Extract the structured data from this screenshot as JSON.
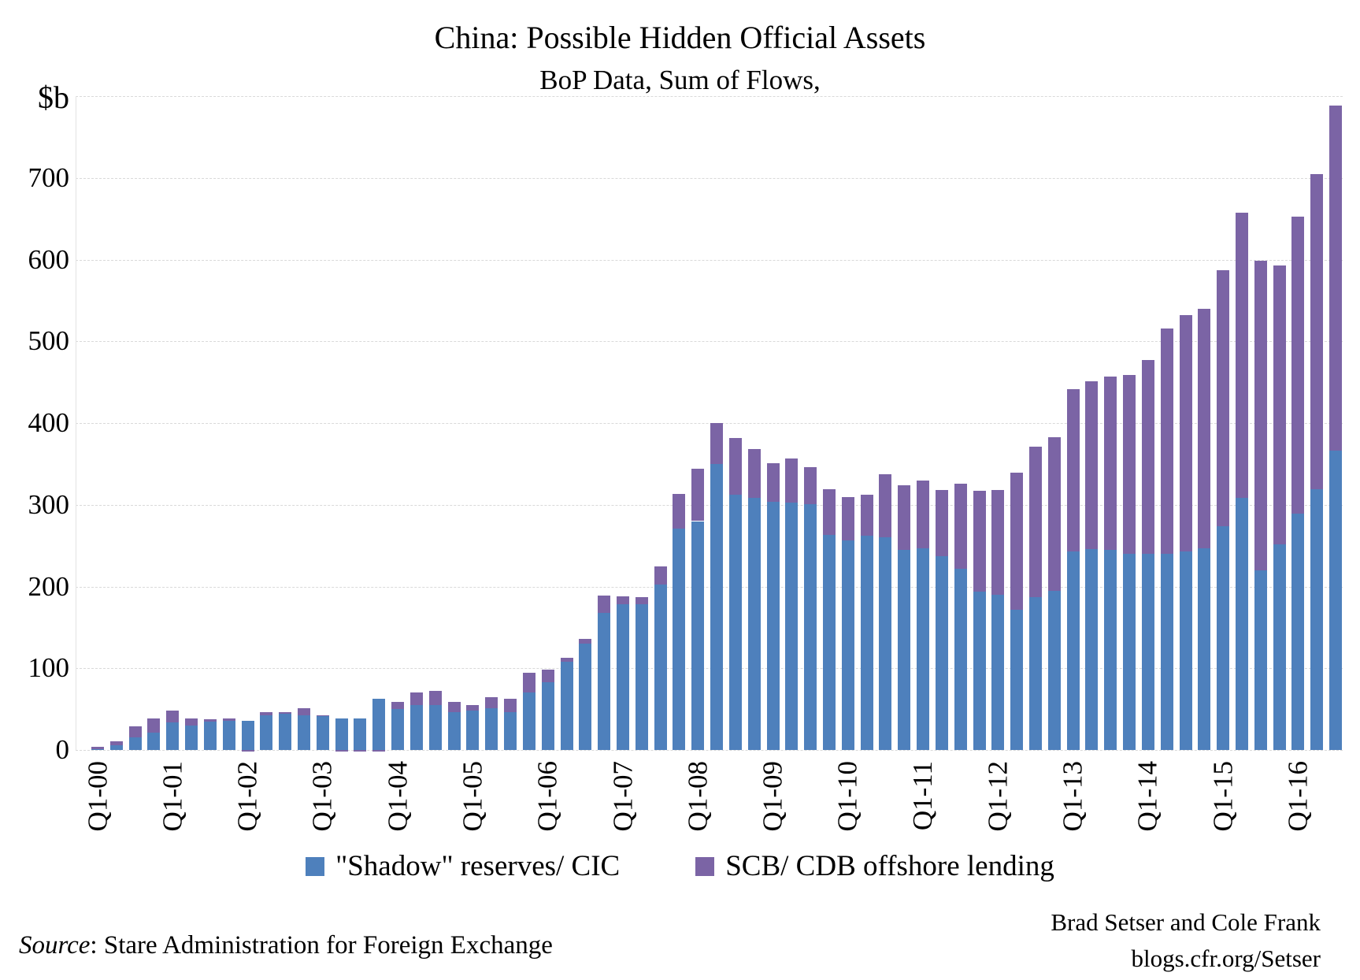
{
  "title": "China: Possible Hidden Official Assets",
  "subtitle": "BoP Data, Sum of Flows,",
  "unit_label": "$b",
  "source": {
    "prefix": "Source",
    "rest": ": Stare Administration for Foreign Exchange"
  },
  "credits": {
    "line1": "Brad Setser and Cole Frank",
    "line2": "blogs.cfr.org/Setser"
  },
  "colors": {
    "blue": "#4e80bc",
    "purple": "#7b64a5",
    "grid": "#d9d9d9",
    "text": "#000000"
  },
  "chart_data": {
    "type": "bar",
    "stacked": true,
    "title": "China: Possible Hidden Official Assets",
    "subtitle": "BoP Data, Sum of Flows,",
    "ylabel": "$b",
    "xlabel": "",
    "ylim": [
      0,
      800
    ],
    "grid": true,
    "legend_position": "bottom",
    "y_ticks": [
      0,
      100,
      200,
      300,
      400,
      500,
      600,
      700
    ],
    "x_tick_labels": [
      "Q1-00",
      "Q1-01",
      "Q1-02",
      "Q1-03",
      "Q1-04",
      "Q1-05",
      "Q1-06",
      "Q1-07",
      "Q1-08",
      "Q1-09",
      "Q1-10",
      "Q1-11",
      "Q1-12",
      "Q1-13",
      "Q1-14",
      "Q1-15",
      "Q1-16"
    ],
    "categories": [
      "Q1-00",
      "Q2-00",
      "Q3-00",
      "Q4-00",
      "Q1-01",
      "Q2-01",
      "Q3-01",
      "Q4-01",
      "Q1-02",
      "Q2-02",
      "Q3-02",
      "Q4-02",
      "Q1-03",
      "Q2-03",
      "Q3-03",
      "Q4-03",
      "Q1-04",
      "Q2-04",
      "Q3-04",
      "Q4-04",
      "Q1-05",
      "Q2-05",
      "Q3-05",
      "Q4-05",
      "Q1-06",
      "Q2-06",
      "Q3-06",
      "Q4-06",
      "Q1-07",
      "Q2-07",
      "Q3-07",
      "Q4-07",
      "Q1-08",
      "Q2-08",
      "Q3-08",
      "Q4-08",
      "Q1-09",
      "Q2-09",
      "Q3-09",
      "Q4-09",
      "Q1-10",
      "Q2-10",
      "Q3-10",
      "Q4-10",
      "Q1-11",
      "Q2-11",
      "Q3-11",
      "Q4-11",
      "Q1-12",
      "Q2-12",
      "Q3-12",
      "Q4-12",
      "Q1-13",
      "Q2-13",
      "Q3-13",
      "Q4-13",
      "Q1-14",
      "Q2-14",
      "Q3-14",
      "Q4-14",
      "Q1-15",
      "Q2-15",
      "Q3-15",
      "Q4-15",
      "Q1-16",
      "Q2-16",
      "Q3-16"
    ],
    "series": [
      {
        "name": "\"Shadow\" reserves/ CIC",
        "color": "#4e80bc",
        "values": [
          1,
          6,
          15,
          21,
          34,
          30,
          35,
          36,
          36,
          42,
          44,
          42,
          41,
          39,
          39,
          63,
          50,
          55,
          55,
          46,
          48,
          51,
          46,
          70,
          83,
          108,
          130,
          168,
          178,
          178,
          202,
          271,
          280,
          350,
          312,
          308,
          304,
          303,
          301,
          263,
          256,
          262,
          260,
          245,
          247,
          237,
          222,
          194,
          190,
          172,
          187,
          195,
          243,
          246,
          245,
          240,
          240,
          240,
          243,
          247,
          274,
          308,
          220,
          252,
          289,
          319,
          366
        ]
      },
      {
        "name": "SCB/ CDB offshore lending",
        "color": "#7b64a5",
        "values": [
          3,
          5,
          14,
          18,
          14,
          9,
          3,
          3,
          -2,
          4,
          2,
          9,
          1,
          -2,
          -2,
          -2,
          9,
          15,
          17,
          13,
          7,
          14,
          17,
          24,
          15,
          5,
          6,
          21,
          10,
          9,
          23,
          42,
          64,
          50,
          70,
          60,
          47,
          54,
          45,
          56,
          53,
          50,
          77,
          79,
          83,
          81,
          104,
          123,
          128,
          167,
          184,
          188,
          198,
          205,
          212,
          219,
          237,
          276,
          289,
          293,
          313,
          349,
          379,
          341,
          364,
          386,
          422
        ]
      }
    ]
  }
}
